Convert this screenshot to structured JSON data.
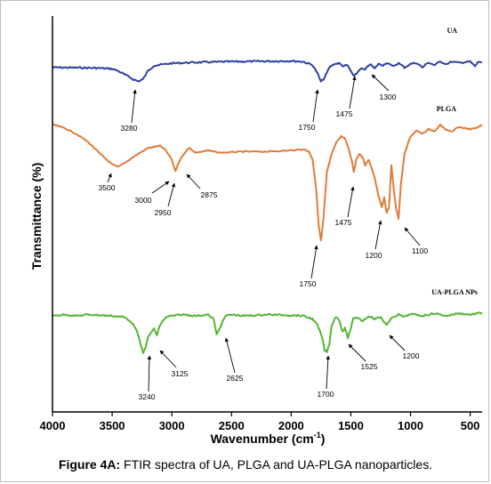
{
  "caption": {
    "label": "Figure 4A:",
    "text": " FTIR spectra of UA, PLGA and UA-PLGA nanoparticles."
  },
  "chart_data": {
    "type": "line",
    "title": "",
    "xlabel": "Wavenumber (cm",
    "xlabel_sup": "-1",
    "xlabel_close": ")",
    "ylabel": "Transmittance (%)",
    "xlim": [
      4000,
      400
    ],
    "x_reversed": true,
    "xticks": [
      4000,
      3500,
      3000,
      2500,
      2000,
      1500,
      1000,
      500
    ],
    "grid": false,
    "legend": "none",
    "series": [
      {
        "name": "UA",
        "color": "#2f3fa3",
        "points": [
          [
            4000,
            0.3
          ],
          [
            3800,
            0.31
          ],
          [
            3600,
            0.33
          ],
          [
            3500,
            0.36
          ],
          [
            3450,
            0.45
          ],
          [
            3380,
            0.65
          ],
          [
            3320,
            0.82
          ],
          [
            3280,
            0.9
          ],
          [
            3240,
            0.8
          ],
          [
            3200,
            0.45
          ],
          [
            3150,
            0.22
          ],
          [
            3000,
            0.12
          ],
          [
            2800,
            0.08
          ],
          [
            2500,
            0.05
          ],
          [
            2200,
            0.03
          ],
          [
            2000,
            0.02
          ],
          [
            1900,
            0.05
          ],
          [
            1820,
            0.2
          ],
          [
            1780,
            0.55
          ],
          [
            1750,
            0.92
          ],
          [
            1720,
            0.75
          ],
          [
            1680,
            0.3
          ],
          [
            1640,
            0.15
          ],
          [
            1600,
            0.12
          ],
          [
            1560,
            0.25
          ],
          [
            1530,
            0.2
          ],
          [
            1500,
            0.45
          ],
          [
            1475,
            0.7
          ],
          [
            1450,
            0.55
          ],
          [
            1420,
            0.35
          ],
          [
            1380,
            0.4
          ],
          [
            1340,
            0.15
          ],
          [
            1300,
            0.35
          ],
          [
            1270,
            0.15
          ],
          [
            1230,
            0.2
          ],
          [
            1200,
            0.1
          ],
          [
            1150,
            0.25
          ],
          [
            1100,
            0.12
          ],
          [
            1050,
            0.3
          ],
          [
            1000,
            0.15
          ],
          [
            950,
            0.1
          ],
          [
            900,
            0.3
          ],
          [
            850,
            0.08
          ],
          [
            800,
            0.2
          ],
          [
            750,
            0.05
          ],
          [
            700,
            0.15
          ],
          [
            650,
            0.05
          ],
          [
            600,
            0.1
          ],
          [
            500,
            0.05
          ],
          [
            460,
            0.25
          ],
          [
            430,
            0.05
          ],
          [
            400,
            0.08
          ]
        ],
        "labels": [
          {
            "text": "3280",
            "x": 3280
          },
          {
            "text": "1750",
            "x": 1750
          },
          {
            "text": "1475",
            "x": 1475
          },
          {
            "text": "1300",
            "x": 1300
          }
        ]
      },
      {
        "name": "PLGA",
        "color": "#e07b39",
        "points": [
          [
            4000,
            0.0
          ],
          [
            3900,
            0.03
          ],
          [
            3800,
            0.08
          ],
          [
            3700,
            0.15
          ],
          [
            3600,
            0.25
          ],
          [
            3500,
            0.34
          ],
          [
            3450,
            0.36
          ],
          [
            3400,
            0.33
          ],
          [
            3300,
            0.26
          ],
          [
            3200,
            0.2
          ],
          [
            3100,
            0.18
          ],
          [
            3050,
            0.22
          ],
          [
            3000,
            0.3
          ],
          [
            2970,
            0.4
          ],
          [
            2950,
            0.34
          ],
          [
            2920,
            0.28
          ],
          [
            2900,
            0.25
          ],
          [
            2875,
            0.22
          ],
          [
            2850,
            0.2
          ],
          [
            2800,
            0.24
          ],
          [
            2700,
            0.22
          ],
          [
            2600,
            0.24
          ],
          [
            2400,
            0.23
          ],
          [
            2200,
            0.23
          ],
          [
            2000,
            0.22
          ],
          [
            1900,
            0.21
          ],
          [
            1850,
            0.23
          ],
          [
            1820,
            0.3
          ],
          [
            1790,
            0.55
          ],
          [
            1770,
            0.85
          ],
          [
            1750,
            0.99
          ],
          [
            1730,
            0.8
          ],
          [
            1700,
            0.4
          ],
          [
            1660,
            0.25
          ],
          [
            1620,
            0.15
          ],
          [
            1580,
            0.1
          ],
          [
            1550,
            0.12
          ],
          [
            1520,
            0.2
          ],
          [
            1490,
            0.32
          ],
          [
            1475,
            0.4
          ],
          [
            1455,
            0.3
          ],
          [
            1430,
            0.25
          ],
          [
            1400,
            0.28
          ],
          [
            1380,
            0.35
          ],
          [
            1350,
            0.3
          ],
          [
            1300,
            0.45
          ],
          [
            1270,
            0.6
          ],
          [
            1240,
            0.7
          ],
          [
            1220,
            0.62
          ],
          [
            1200,
            0.75
          ],
          [
            1180,
            0.7
          ],
          [
            1160,
            0.35
          ],
          [
            1140,
            0.55
          ],
          [
            1120,
            0.72
          ],
          [
            1100,
            0.8
          ],
          [
            1080,
            0.5
          ],
          [
            1050,
            0.25
          ],
          [
            1000,
            0.1
          ],
          [
            950,
            0.05
          ],
          [
            900,
            0.08
          ],
          [
            850,
            0.04
          ],
          [
            800,
            0.06
          ],
          [
            750,
            0.0
          ],
          [
            700,
            0.05
          ],
          [
            650,
            0.06
          ],
          [
            600,
            0.02
          ],
          [
            500,
            0.04
          ],
          [
            450,
            0.03
          ],
          [
            400,
            0.0
          ]
        ],
        "labels": [
          {
            "text": "3500",
            "x": 3500
          },
          {
            "text": "3000",
            "x": 3000
          },
          {
            "text": "2950",
            "x": 2950
          },
          {
            "text": "2875",
            "x": 2875
          },
          {
            "text": "1750",
            "x": 1750
          },
          {
            "text": "1475",
            "x": 1475
          },
          {
            "text": "1200",
            "x": 1200
          },
          {
            "text": "1100",
            "x": 1100
          }
        ]
      },
      {
        "name": "UA-PLGA NPs",
        "color": "#54b534",
        "points": [
          [
            4000,
            0.1
          ],
          [
            3900,
            0.08
          ],
          [
            3800,
            0.1
          ],
          [
            3700,
            0.08
          ],
          [
            3600,
            0.09
          ],
          [
            3500,
            0.1
          ],
          [
            3400,
            0.12
          ],
          [
            3350,
            0.18
          ],
          [
            3300,
            0.3
          ],
          [
            3270,
            0.5
          ],
          [
            3240,
            0.7
          ],
          [
            3220,
            0.6
          ],
          [
            3200,
            0.45
          ],
          [
            3150,
            0.3
          ],
          [
            3125,
            0.42
          ],
          [
            3100,
            0.25
          ],
          [
            3050,
            0.12
          ],
          [
            3000,
            0.1
          ],
          [
            2900,
            0.08
          ],
          [
            2800,
            0.1
          ],
          [
            2700,
            0.08
          ],
          [
            2650,
            0.15
          ],
          [
            2625,
            0.4
          ],
          [
            2600,
            0.3
          ],
          [
            2550,
            0.1
          ],
          [
            2500,
            0.08
          ],
          [
            2400,
            0.1
          ],
          [
            2200,
            0.08
          ],
          [
            2000,
            0.09
          ],
          [
            1900,
            0.1
          ],
          [
            1820,
            0.15
          ],
          [
            1780,
            0.25
          ],
          [
            1740,
            0.45
          ],
          [
            1720,
            0.65
          ],
          [
            1700,
            0.68
          ],
          [
            1680,
            0.55
          ],
          [
            1660,
            0.25
          ],
          [
            1630,
            0.12
          ],
          [
            1600,
            0.15
          ],
          [
            1570,
            0.35
          ],
          [
            1550,
            0.3
          ],
          [
            1525,
            0.45
          ],
          [
            1500,
            0.3
          ],
          [
            1480,
            0.15
          ],
          [
            1450,
            0.12
          ],
          [
            1400,
            0.18
          ],
          [
            1350,
            0.1
          ],
          [
            1300,
            0.15
          ],
          [
            1250,
            0.12
          ],
          [
            1200,
            0.25
          ],
          [
            1150,
            0.12
          ],
          [
            1100,
            0.08
          ],
          [
            1050,
            0.12
          ],
          [
            1000,
            0.07
          ],
          [
            900,
            0.1
          ],
          [
            800,
            0.06
          ],
          [
            700,
            0.1
          ],
          [
            600,
            0.06
          ],
          [
            500,
            0.08
          ],
          [
            400,
            0.05
          ]
        ],
        "labels": [
          {
            "text": "3240",
            "x": 3240
          },
          {
            "text": "3125",
            "x": 3125
          },
          {
            "text": "2625",
            "x": 2625
          },
          {
            "text": "1700",
            "x": 1700
          },
          {
            "text": "1525",
            "x": 1525
          },
          {
            "text": "1200",
            "x": 1200
          }
        ]
      }
    ]
  }
}
